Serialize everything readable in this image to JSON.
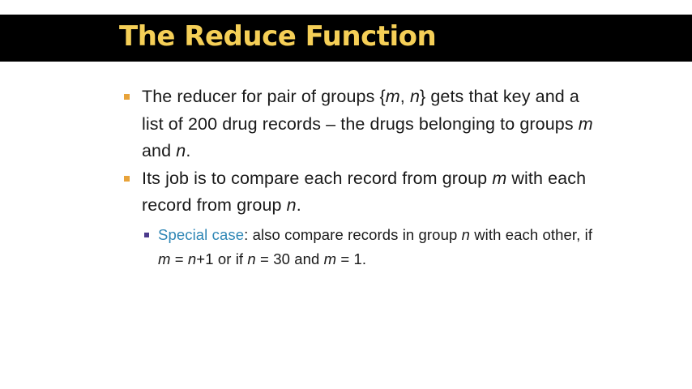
{
  "slide": {
    "title": "The Reduce Function",
    "colors": {
      "title_bar": "#000000",
      "title_text": "#f5cf57",
      "bullet_marker": "#e8a33a",
      "sub_bullet_marker": "#4b3a8c",
      "highlight": "#2e86b5"
    },
    "bullets": [
      {
        "parts": {
          "a": "The reducer for pair of groups {",
          "b": "m",
          "c": ", ",
          "d": "n",
          "e": "} gets that key and a list of 200 drug records – the drugs belonging to groups ",
          "f": "m",
          "g": " and ",
          "h": "n",
          "i": "."
        }
      },
      {
        "parts": {
          "a": "Its job is to compare each record from group ",
          "b": "m",
          "c": " with each record from group ",
          "d": "n",
          "e": "."
        },
        "sub": [
          {
            "parts": {
              "highlight": "Special case",
              "a": ": also compare records in group ",
              "b": "n",
              "c": " with each other, if ",
              "d": "m",
              "e": " = ",
              "f": "n",
              "g": "+1 or if ",
              "h": "n",
              "i": " = 30 and ",
              "j": "m",
              "k": " = 1."
            }
          }
        ]
      }
    ]
  }
}
